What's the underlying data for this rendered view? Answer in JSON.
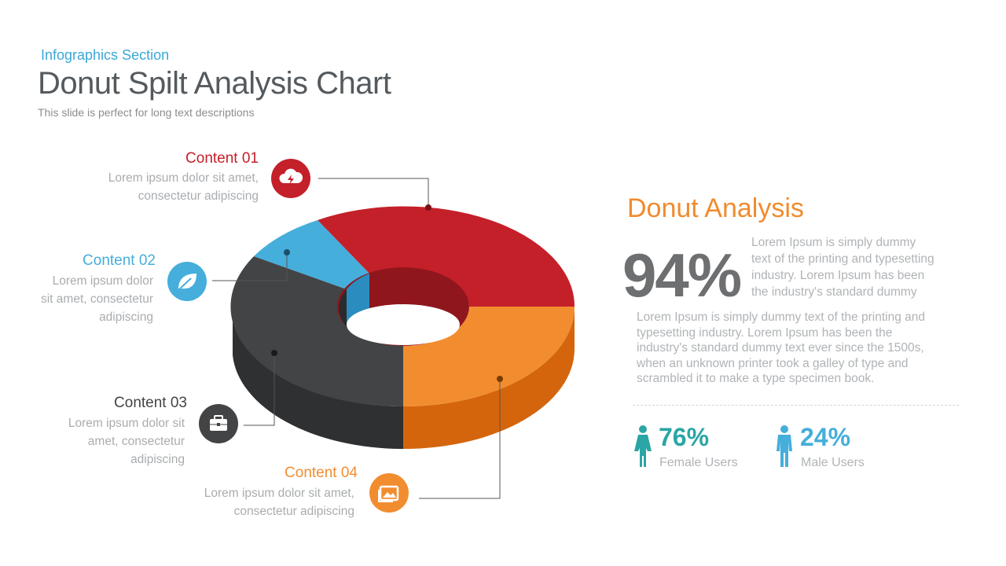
{
  "header": {
    "section": "Infographics Section",
    "title": "Donut Spilt Analysis Chart",
    "subtitle": "This slide is perfect for long text descriptions"
  },
  "colors": {
    "red": "#c4202a",
    "blue": "#45aedb",
    "dark": "#434445",
    "orange": "#f28d2f",
    "teal": "#2ba5a5",
    "accent_text": "#f08b2e"
  },
  "contents": [
    {
      "title": "Content 01",
      "text_line1": "Lorem ipsum dolor sit amet,",
      "text_line2": "consectetur adipiscing",
      "text_line3": "",
      "icon": "cloud-lightning-icon",
      "color": "#c4202a"
    },
    {
      "title": "Content 02",
      "text_line1": "Lorem ipsum dolor",
      "text_line2": "sit amet, consectetur",
      "text_line3": "adipiscing",
      "icon": "leaf-icon",
      "color": "#45aedb"
    },
    {
      "title": "Content 03",
      "text_line1": "Lorem ipsum dolor sit",
      "text_line2": "amet, consectetur",
      "text_line3": "adipiscing",
      "icon": "briefcase-icon",
      "color": "#434445"
    },
    {
      "title": "Content 04",
      "text_line1": "Lorem ipsum dolor sit amet,",
      "text_line2": "consectetur adipiscing",
      "text_line3": "",
      "icon": "image-icon",
      "color": "#f28d2f"
    }
  ],
  "analysis": {
    "title": "Donut Analysis",
    "percent": "94%",
    "para1_lines": [
      "Lorem Ipsum is simply dummy",
      "text of the printing and typesetting",
      "industry. Lorem Ipsum has been",
      "the industry's standard dummy"
    ],
    "para2_lines": [
      "Lorem Ipsum is simply dummy text of the printing and",
      "typesetting industry. Lorem Ipsum has been the",
      "industry's standard dummy text ever since the 1500s,",
      "when an unknown printer took a galley of type and",
      "scrambled it to make a type specimen book."
    ]
  },
  "stats": [
    {
      "value": "76%",
      "label": "Female Users",
      "icon": "female-user-icon",
      "color": "#2ba5a5"
    },
    {
      "value": "24%",
      "label": "Male Users",
      "icon": "male-user-icon",
      "color": "#45aedb"
    }
  ]
}
